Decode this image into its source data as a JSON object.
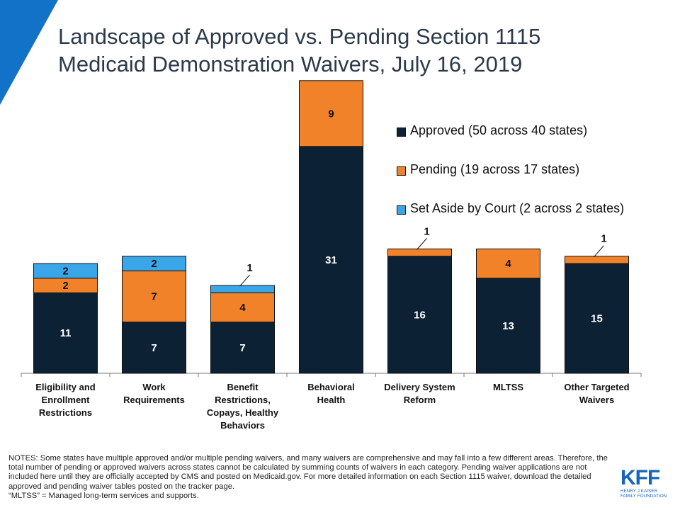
{
  "title_line1": "Landscape of Approved vs. Pending Section 1115",
  "title_line2": "Medicaid Demonstration Waivers, July 16, 2019",
  "colors": {
    "approved": "#0d2135",
    "pending": "#f2822a",
    "set_aside": "#3aa6e8",
    "corner": "#1272c8",
    "logo": "#1565c0"
  },
  "legend": [
    {
      "key": "approved",
      "label": "Approved (50 across 40 states)"
    },
    {
      "key": "pending",
      "label": "Pending (19 across 17 states)"
    },
    {
      "key": "set_aside",
      "label": "Set Aside by Court (2 across 2 states)"
    }
  ],
  "chart_data": {
    "type": "bar",
    "stacked": true,
    "title": "Landscape of Approved vs. Pending Section 1115 Medicaid Demonstration Waivers, July 16, 2019",
    "xlabel": "",
    "ylabel": "",
    "ylim": [
      0,
      40
    ],
    "grid": false,
    "legend_position": "top-right",
    "categories": [
      [
        "Eligibility and",
        "Enrollment",
        "Restrictions"
      ],
      [
        "Work",
        "Requirements"
      ],
      [
        "Benefit",
        "Restrictions,",
        "Copays, Healthy",
        "Behaviors"
      ],
      [
        "Behavioral",
        "Health"
      ],
      [
        "Delivery System",
        "Reform"
      ],
      [
        "MLTSS"
      ],
      [
        "Other Targeted",
        "Waivers"
      ]
    ],
    "series": [
      {
        "name": "Approved (50 across 40 states)",
        "key": "approved",
        "values": [
          11,
          7,
          7,
          31,
          16,
          13,
          15
        ]
      },
      {
        "name": "Pending (19 across 17 states)",
        "key": "pending",
        "values": [
          2,
          7,
          4,
          9,
          1,
          4,
          1
        ]
      },
      {
        "name": "Set Aside by Court (2 across 2 states)",
        "key": "set_aside",
        "values": [
          2,
          2,
          1,
          0,
          0,
          0,
          0
        ]
      }
    ]
  },
  "notes": "NOTES: Some states have multiple approved and/or multiple pending waivers, and many waivers are comprehensive and may fall into a few different areas. Therefore, the total number of pending or approved waivers across states cannot be calculated by summing counts of waivers in each category. Pending waiver applications are not included here until they are officially accepted by CMS and posted on Medicaid.gov. For more detailed information on each Section 1115 waiver, download the detailed approved and pending waiver tables posted on the tracker page.\n“MLTSS” = Managed long-term services and supports.",
  "logo": {
    "mark": "KFF",
    "sub_line1": "HENRY J KAISER",
    "sub_line2": "FAMILY FOUNDATION"
  }
}
